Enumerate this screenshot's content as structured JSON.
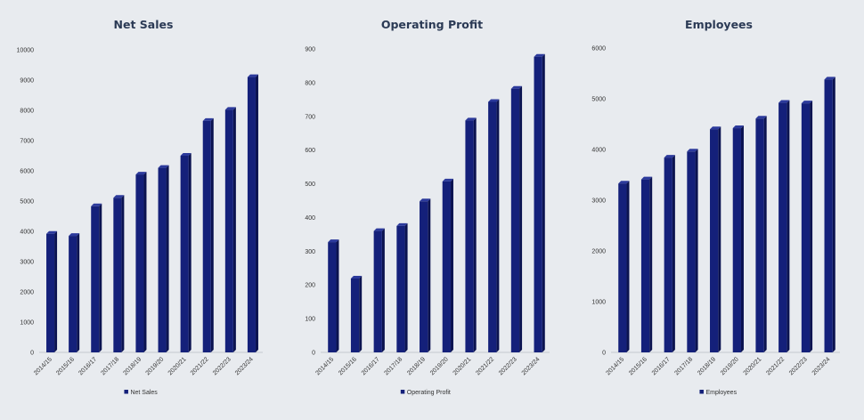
{
  "colors": {
    "bar_front": "#14207a",
    "bar_side": "#0b1350",
    "bar_top": "#2c3a9c",
    "background": "#e8ebef"
  },
  "chart_data": [
    {
      "type": "bar",
      "title": "Net Sales",
      "categories": [
        "2014/15",
        "2015/16",
        "2016/17",
        "2017/18",
        "2018/19",
        "2019/20",
        "2020/21",
        "2021/22",
        "2022/23",
        "2023/24"
      ],
      "series": [
        {
          "name": "Net Sales",
          "values": [
            3920,
            3850,
            4830,
            5110,
            5880,
            6100,
            6500,
            7650,
            8020,
            9100
          ]
        }
      ],
      "ylim": [
        0,
        10000
      ],
      "yticks": [
        0,
        1000,
        2000,
        3000,
        4000,
        5000,
        6000,
        7000,
        8000,
        9000,
        10000
      ],
      "legend": "bottom",
      "grid": false
    },
    {
      "type": "bar",
      "title": "Operating Profit",
      "categories": [
        "2014/15",
        "2015/16",
        "2016/17",
        "2017/18",
        "2018/19",
        "2019/20",
        "2020/21",
        "2021/22",
        "2022/23",
        "2023/24"
      ],
      "series": [
        {
          "name": "Operating Profit",
          "values": [
            327,
            219,
            360,
            375,
            448,
            507,
            688,
            743,
            782,
            877
          ]
        }
      ],
      "ylim": [
        0,
        900
      ],
      "yticks": [
        0,
        100,
        200,
        300,
        400,
        500,
        600,
        700,
        800,
        900
      ],
      "legend": "bottom",
      "grid": false
    },
    {
      "type": "bar",
      "title": "Employees",
      "categories": [
        "2014/15",
        "2015/16",
        "2016/17",
        "2017/18",
        "2018/19",
        "2019/20",
        "2020/21",
        "2021/22",
        "2022/23",
        "2023/24"
      ],
      "series": [
        {
          "name": "Employees",
          "values": [
            3330,
            3410,
            3840,
            3960,
            4400,
            4420,
            4610,
            4920,
            4910,
            5380
          ]
        }
      ],
      "ylim": [
        0,
        6000
      ],
      "yticks": [
        0,
        1000,
        2000,
        3000,
        4000,
        5000,
        6000
      ],
      "legend": "bottom",
      "grid": false
    }
  ]
}
